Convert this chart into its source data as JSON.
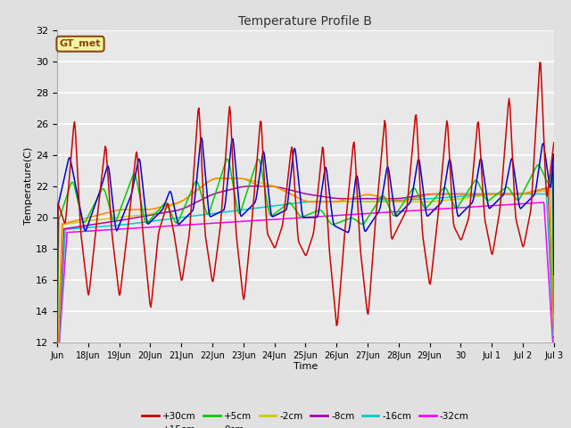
{
  "title": "Temperature Profile B",
  "xlabel": "Time",
  "ylabel": "Temperature(C)",
  "ylim": [
    12,
    32
  ],
  "yticks": [
    12,
    14,
    16,
    18,
    20,
    22,
    24,
    26,
    28,
    30,
    32
  ],
  "background_color": "#e0e0e0",
  "plot_bg_color": "#e8e8e8",
  "grid_color": "#ffffff",
  "annotation_text": "GT_met",
  "annotation_bg": "#f5f5a0",
  "annotation_border": "#8B4513",
  "series_colors": {
    "+30cm": "#cc0000",
    "+15cm": "#0000cc",
    "+5cm": "#00cc00",
    "0cm": "#ff8800",
    "-2cm": "#cccc00",
    "-8cm": "#aa00aa",
    "-16cm": "#00cccc",
    "-32cm": "#ff00ff"
  },
  "x_tick_labels": [
    "Jun",
    "18Jun",
    "19Jun",
    "20Jun",
    "21Jun",
    "22Jun",
    "23Jun",
    "24Jun",
    "25Jun",
    "26Jun",
    "27Jun",
    "28Jun",
    "29Jun",
    "30",
    "Jul 1",
    "Jul 2",
    "Jul 3"
  ],
  "num_points": 600
}
